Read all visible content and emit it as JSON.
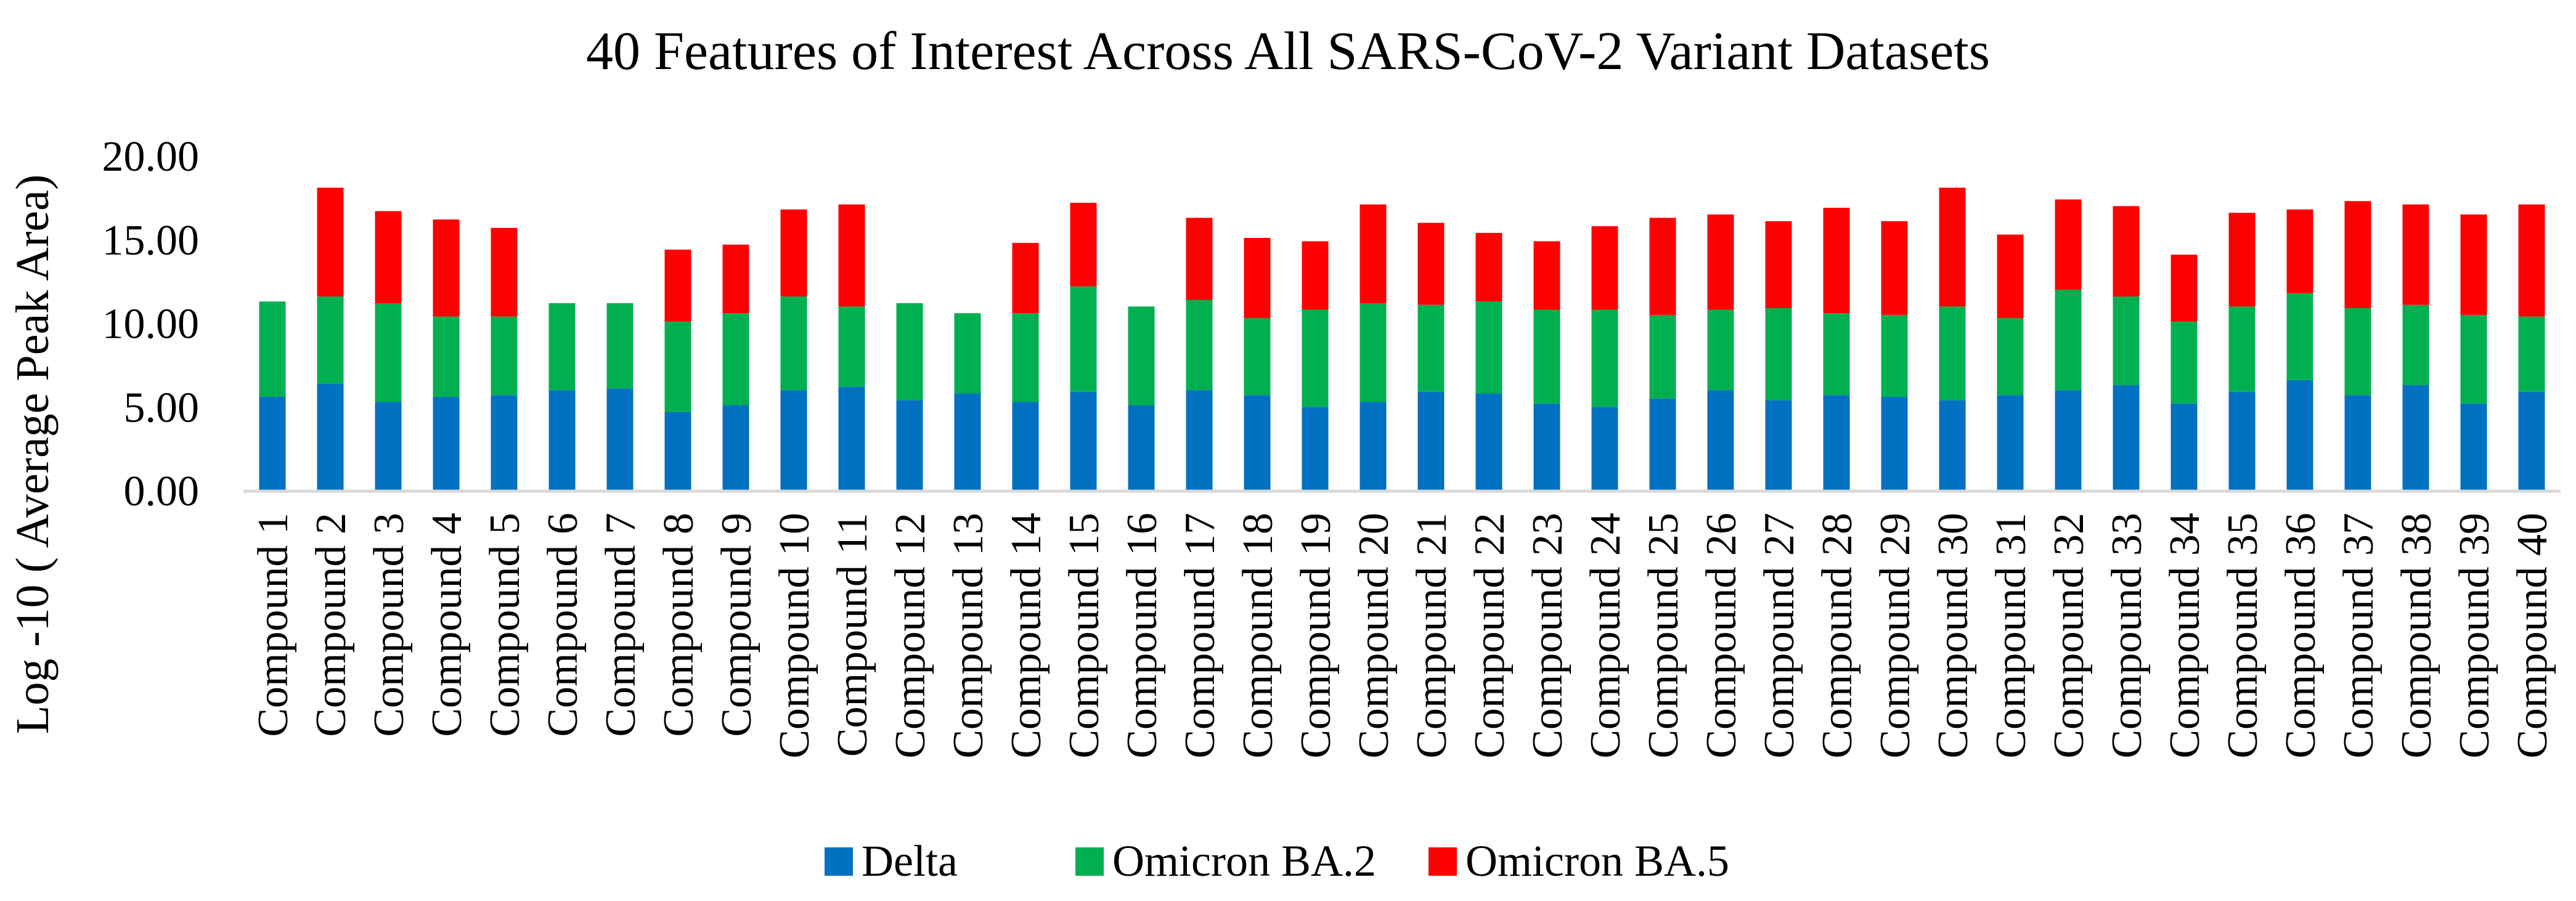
{
  "chart_data": {
    "type": "bar",
    "stacked": true,
    "title": "40 Features of Interest Across All SARS-CoV-2 Variant Datasets",
    "xlabel": "",
    "ylabel": "Log -10 ( Average Peak Area)",
    "ylim": [
      0,
      20
    ],
    "yticks": [
      "0.00",
      "5.00",
      "10.00",
      "15.00",
      "20.00"
    ],
    "ytick_values": [
      0,
      5,
      10,
      15,
      20
    ],
    "grid": false,
    "legend_position": "bottom",
    "categories": [
      "Compound 1",
      "Compound 2",
      "Compound 3",
      "Compound 4",
      "Compound 5",
      "Compound 6",
      "Compound 7",
      "Compound 8",
      "Compound 9",
      "Compound 10",
      "Compound 11",
      "Compound 12",
      "Compound 13",
      "Compound 14",
      "Compound 15",
      "Compound 16",
      "Compound 17",
      "Compound 18",
      "Compound 19",
      "Compound 20",
      "Compound 21",
      "Compound 22",
      "Compound 23",
      "Compound 24",
      "Compound 25",
      "Compound 26",
      "Compound 27",
      "Compound 28",
      "Compound 29",
      "Compound 30",
      "Compound 31",
      "Compound 32",
      "Compound 33",
      "Compound 34",
      "Compound 35",
      "Compound 36",
      "Compound 37",
      "Compound 38",
      "Compound 39",
      "Compound 40"
    ],
    "series": [
      {
        "name": "Delta",
        "color": "#0070C0",
        "values": [
          5.6,
          6.4,
          5.3,
          5.6,
          5.7,
          6.0,
          6.1,
          4.7,
          5.1,
          6.0,
          6.2,
          5.4,
          5.8,
          5.3,
          5.9,
          5.1,
          6.0,
          5.7,
          5.0,
          5.3,
          5.9,
          5.8,
          5.2,
          5.0,
          5.5,
          6.0,
          5.4,
          5.7,
          5.6,
          5.4,
          5.7,
          6.0,
          6.3,
          5.2,
          5.9,
          6.6,
          5.7,
          6.3,
          5.2,
          5.9
        ]
      },
      {
        "name": "Omicron BA.2",
        "color": "#00B050",
        "values": [
          5.7,
          5.2,
          5.9,
          4.8,
          4.7,
          5.2,
          5.1,
          5.4,
          5.5,
          5.6,
          4.8,
          5.8,
          4.8,
          5.3,
          6.3,
          5.9,
          5.4,
          4.6,
          5.8,
          5.9,
          5.2,
          5.5,
          5.6,
          5.8,
          5.0,
          4.8,
          5.5,
          4.9,
          4.9,
          5.6,
          4.6,
          6.0,
          5.3,
          4.9,
          5.1,
          5.2,
          5.2,
          4.8,
          5.3,
          4.5
        ]
      },
      {
        "name": "Omicron BA.5",
        "color": "#FF0000",
        "values": [
          0,
          6.5,
          5.5,
          5.8,
          5.3,
          0,
          0,
          4.3,
          4.1,
          5.2,
          6.1,
          0,
          0,
          4.2,
          5.0,
          0,
          4.9,
          4.8,
          4.1,
          5.9,
          4.9,
          4.1,
          4.1,
          5.0,
          5.8,
          5.7,
          5.2,
          6.3,
          5.6,
          7.1,
          5.0,
          5.4,
          5.4,
          4.0,
          5.6,
          5.0,
          6.4,
          6.0,
          6.0,
          6.7
        ]
      }
    ]
  }
}
